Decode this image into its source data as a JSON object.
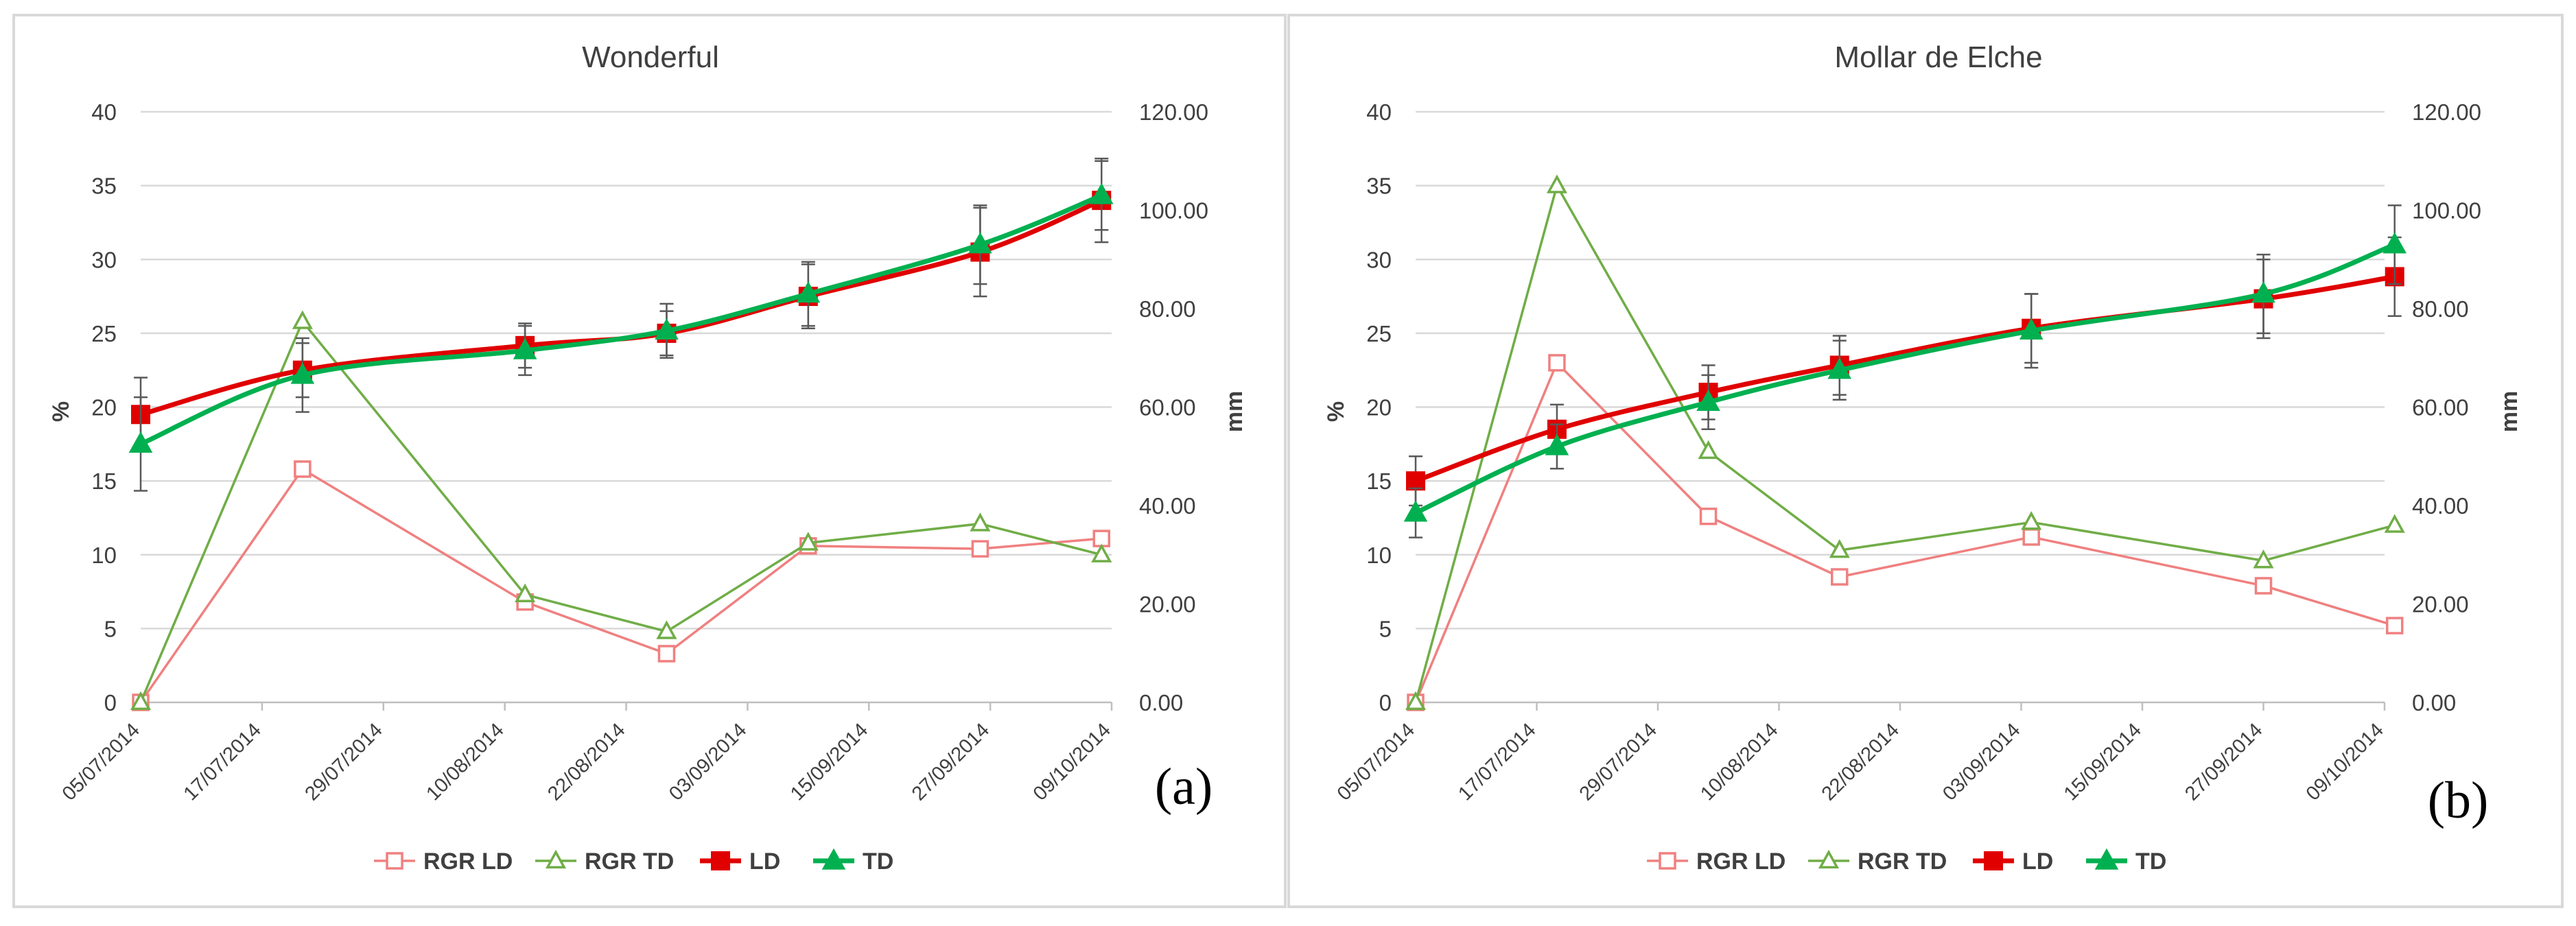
{
  "chart_data": [
    {
      "type": "line",
      "panel_label": "(a)",
      "title": "Wonderful",
      "ylabel": "%",
      "y2label": "mm",
      "ylim": [
        0,
        40
      ],
      "y2lim": [
        0,
        120
      ],
      "yticks": [
        "0",
        "5",
        "10",
        "15",
        "20",
        "25",
        "30",
        "35",
        "40"
      ],
      "y2ticks": [
        "0.00",
        "20.00",
        "40.00",
        "60.00",
        "80.00",
        "100.00",
        "120.00"
      ],
      "xticks": [
        "05/07/2014",
        "17/07/2014",
        "29/07/2014",
        "10/08/2014",
        "22/08/2014",
        "03/09/2014",
        "15/09/2014",
        "27/09/2014",
        "09/10/2014"
      ],
      "xlim_days": [
        0,
        96
      ],
      "legend": [
        "RGR LD",
        "RGR TD",
        "LD",
        "TD"
      ],
      "series": [
        {
          "name": "RGR LD",
          "axis": "left",
          "color": "#f08080",
          "marker": "open-square",
          "x_days": [
            0,
            16,
            38,
            52,
            66,
            83,
            95
          ],
          "values": [
            0,
            15.8,
            6.8,
            3.3,
            10.6,
            10.4,
            11.1
          ]
        },
        {
          "name": "RGR TD",
          "axis": "left",
          "color": "#70ad47",
          "marker": "open-triangle",
          "x_days": [
            0,
            16,
            38,
            52,
            66,
            83,
            95
          ],
          "values": [
            0,
            25.8,
            7.3,
            4.8,
            10.8,
            12.1,
            10.0
          ]
        },
        {
          "name": "LD",
          "axis": "right",
          "color": "#e00000",
          "marker": "filled-square",
          "x_days": [
            0,
            16,
            38,
            52,
            66,
            83,
            95
          ],
          "values": [
            58.5,
            67.5,
            72.5,
            75,
            82.5,
            91.5,
            102
          ],
          "errors": [
            7.5,
            5.5,
            4.5,
            4.5,
            6.5,
            9,
            8.5
          ]
        },
        {
          "name": "TD",
          "axis": "right",
          "color": "#00b050",
          "marker": "filled-triangle",
          "x_days": [
            0,
            16,
            38,
            52,
            66,
            83,
            95
          ],
          "values": [
            52.5,
            66.5,
            71.5,
            75.5,
            83,
            93,
            103
          ],
          "errors": [
            9.5,
            7.5,
            5,
            5.5,
            6.5,
            8,
            7
          ]
        }
      ]
    },
    {
      "type": "line",
      "panel_label": "(b)",
      "title": "Mollar de Elche",
      "ylabel": "%",
      "y2label": "mm",
      "ylim": [
        0,
        40
      ],
      "y2lim": [
        0,
        120
      ],
      "yticks": [
        "0",
        "5",
        "10",
        "15",
        "20",
        "25",
        "30",
        "35",
        "40"
      ],
      "y2ticks": [
        "0.00",
        "20.00",
        "40.00",
        "60.00",
        "80.00",
        "100.00",
        "120.00"
      ],
      "xticks": [
        "05/07/2014",
        "17/07/2014",
        "29/07/2014",
        "10/08/2014",
        "22/08/2014",
        "03/09/2014",
        "15/09/2014",
        "27/09/2014",
        "09/10/2014"
      ],
      "xlim_days": [
        0,
        96
      ],
      "legend": [
        "RGR LD",
        "RGR TD",
        "LD",
        "TD"
      ],
      "series": [
        {
          "name": "RGR LD",
          "axis": "left",
          "color": "#f08080",
          "marker": "open-square",
          "x_days": [
            0,
            14,
            29,
            42,
            61,
            84,
            97
          ],
          "values": [
            0,
            23.0,
            12.6,
            8.5,
            11.2,
            7.9,
            5.2
          ]
        },
        {
          "name": "RGR TD",
          "axis": "left",
          "color": "#70ad47",
          "marker": "open-triangle",
          "x_days": [
            0,
            14,
            29,
            42,
            61,
            84,
            97
          ],
          "values": [
            0,
            35.0,
            17.0,
            10.3,
            12.2,
            9.6,
            12.0
          ]
        },
        {
          "name": "LD",
          "axis": "right",
          "color": "#e00000",
          "marker": "filled-square",
          "x_days": [
            0,
            14,
            29,
            42,
            61,
            84,
            97
          ],
          "values": [
            45,
            55.5,
            63,
            68.5,
            76,
            82,
            86.5
          ],
          "errors": [
            5,
            5,
            5.5,
            6,
            7,
            8,
            8
          ]
        },
        {
          "name": "TD",
          "axis": "right",
          "color": "#00b050",
          "marker": "filled-triangle",
          "x_days": [
            0,
            14,
            29,
            42,
            61,
            84,
            97
          ],
          "values": [
            38.5,
            52,
            61,
            67.5,
            75.5,
            83,
            93
          ],
          "errors": [
            5,
            4.5,
            5.5,
            6,
            7.5,
            8,
            8
          ]
        }
      ]
    }
  ]
}
